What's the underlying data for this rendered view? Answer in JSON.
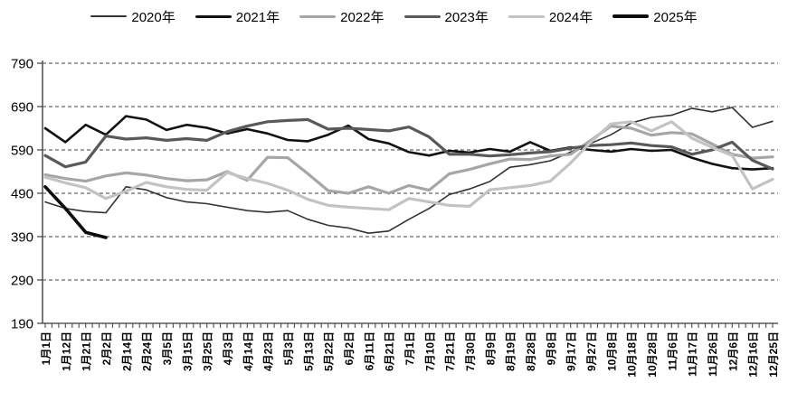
{
  "chart_data": {
    "type": "line",
    "title": "",
    "xlabel": "",
    "ylabel": "",
    "ylim": [
      190,
      790
    ],
    "y_ticks": [
      190,
      290,
      390,
      490,
      590,
      690,
      790
    ],
    "grid": "dashed-horizontal",
    "legend_position": "top",
    "x_minor_ticks_per_label": 3,
    "axis_color": "#595959",
    "grid_color": "#404040",
    "tick_label_color": "#000000",
    "categories": [
      "1月1日",
      "1月12日",
      "1月21日",
      "2月2日",
      "2月14日",
      "2月24日",
      "3月5日",
      "3月15日",
      "3月25日",
      "4月3日",
      "4月14日",
      "4月23日",
      "5月3日",
      "5月13日",
      "5月22日",
      "6月2日",
      "6月11日",
      "6月21日",
      "7月1日",
      "7月10日",
      "7月21日",
      "7月30日",
      "8月9日",
      "8月19日",
      "8月28日",
      "9月8日",
      "9月17日",
      "9月27日",
      "10月8日",
      "10月18日",
      "10月28日",
      "11月6日",
      "11月17日",
      "11月26日",
      "12月6日",
      "12月16日",
      "12月25日"
    ],
    "series": [
      {
        "name": "2020年",
        "color": "#333333",
        "width": 1.6,
        "values": [
          470,
          455,
          448,
          445,
          505,
          498,
          480,
          470,
          466,
          458,
          450,
          446,
          450,
          430,
          416,
          410,
          398,
          403,
          430,
          455,
          487,
          500,
          517,
          550,
          556,
          565,
          585,
          605,
          625,
          652,
          665,
          670,
          686,
          678,
          688,
          642,
          656
        ]
      },
      {
        "name": "2021年",
        "color": "#111111",
        "width": 2.6,
        "values": [
          640,
          608,
          648,
          625,
          668,
          660,
          636,
          648,
          641,
          628,
          638,
          628,
          613,
          610,
          625,
          646,
          615,
          605,
          585,
          577,
          588,
          584,
          592,
          586,
          608,
          588,
          596,
          590,
          586,
          592,
          588,
          590,
          572,
          558,
          548,
          545,
          548
        ]
      },
      {
        "name": "2022年",
        "color": "#a6a6a6",
        "width": 3.2,
        "values": [
          533,
          524,
          518,
          530,
          537,
          532,
          524,
          519,
          521,
          540,
          520,
          573,
          572,
          535,
          496,
          490,
          505,
          490,
          508,
          497,
          535,
          545,
          558,
          569,
          568,
          576,
          580,
          612,
          645,
          640,
          624,
          630,
          627,
          604,
          580,
          571,
          574
        ]
      },
      {
        "name": "2023年",
        "color": "#595959",
        "width": 3.2,
        "values": [
          577,
          551,
          562,
          622,
          615,
          618,
          612,
          616,
          612,
          632,
          645,
          655,
          658,
          660,
          638,
          640,
          637,
          634,
          643,
          620,
          580,
          580,
          576,
          579,
          583,
          586,
          594,
          600,
          602,
          606,
          600,
          597,
          580,
          590,
          608,
          566,
          546
        ]
      },
      {
        "name": "2024年",
        "color": "#c3c3c3",
        "width": 3.2,
        "values": [
          527,
          514,
          503,
          478,
          495,
          515,
          505,
          499,
          497,
          538,
          524,
          513,
          497,
          476,
          462,
          458,
          455,
          452,
          478,
          470,
          462,
          460,
          498,
          503,
          508,
          518,
          560,
          608,
          650,
          655,
          634,
          655,
          617,
          596,
          577,
          500,
          522
        ]
      },
      {
        "name": "2025年",
        "color": "#0d0d0d",
        "width": 3.6,
        "values": [
          505,
          455,
          400,
          388
        ]
      }
    ]
  }
}
